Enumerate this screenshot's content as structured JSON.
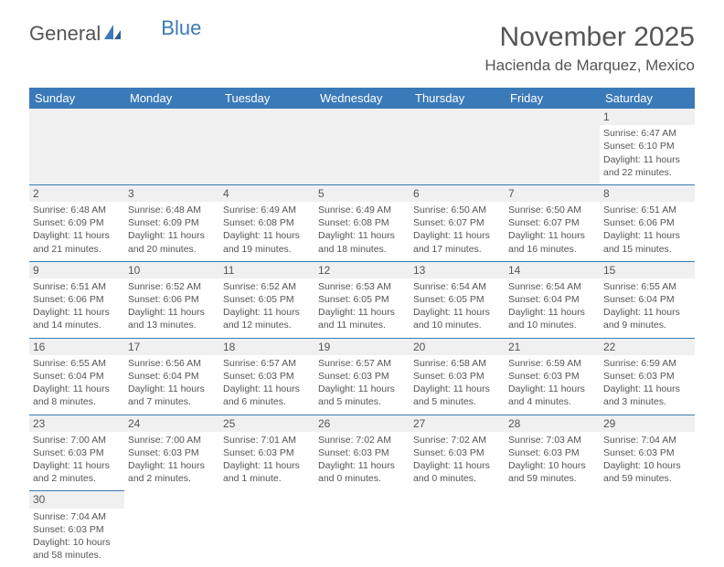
{
  "brand": {
    "name1": "General",
    "name2": "Blue"
  },
  "title": "November 2025",
  "subtitle": "Hacienda de Marquez, Mexico",
  "colors": {
    "header_bg": "#3a7ab8",
    "header_text": "#ffffff",
    "border": "#3a7ab8",
    "daynum_bg": "#f0f0f0",
    "text": "#555555"
  },
  "typography": {
    "title_fontsize": 30,
    "subtitle_fontsize": 17,
    "header_fontsize": 13,
    "cell_fontsize": 10.5
  },
  "days": [
    "Sunday",
    "Monday",
    "Tuesday",
    "Wednesday",
    "Thursday",
    "Friday",
    "Saturday"
  ],
  "weeks": [
    [
      null,
      null,
      null,
      null,
      null,
      null,
      {
        "n": "1",
        "sr": "Sunrise: 6:47 AM",
        "ss": "Sunset: 6:10 PM",
        "d1": "Daylight: 11 hours",
        "d2": "and 22 minutes."
      }
    ],
    [
      {
        "n": "2",
        "sr": "Sunrise: 6:48 AM",
        "ss": "Sunset: 6:09 PM",
        "d1": "Daylight: 11 hours",
        "d2": "and 21 minutes."
      },
      {
        "n": "3",
        "sr": "Sunrise: 6:48 AM",
        "ss": "Sunset: 6:09 PM",
        "d1": "Daylight: 11 hours",
        "d2": "and 20 minutes."
      },
      {
        "n": "4",
        "sr": "Sunrise: 6:49 AM",
        "ss": "Sunset: 6:08 PM",
        "d1": "Daylight: 11 hours",
        "d2": "and 19 minutes."
      },
      {
        "n": "5",
        "sr": "Sunrise: 6:49 AM",
        "ss": "Sunset: 6:08 PM",
        "d1": "Daylight: 11 hours",
        "d2": "and 18 minutes."
      },
      {
        "n": "6",
        "sr": "Sunrise: 6:50 AM",
        "ss": "Sunset: 6:07 PM",
        "d1": "Daylight: 11 hours",
        "d2": "and 17 minutes."
      },
      {
        "n": "7",
        "sr": "Sunrise: 6:50 AM",
        "ss": "Sunset: 6:07 PM",
        "d1": "Daylight: 11 hours",
        "d2": "and 16 minutes."
      },
      {
        "n": "8",
        "sr": "Sunrise: 6:51 AM",
        "ss": "Sunset: 6:06 PM",
        "d1": "Daylight: 11 hours",
        "d2": "and 15 minutes."
      }
    ],
    [
      {
        "n": "9",
        "sr": "Sunrise: 6:51 AM",
        "ss": "Sunset: 6:06 PM",
        "d1": "Daylight: 11 hours",
        "d2": "and 14 minutes."
      },
      {
        "n": "10",
        "sr": "Sunrise: 6:52 AM",
        "ss": "Sunset: 6:06 PM",
        "d1": "Daylight: 11 hours",
        "d2": "and 13 minutes."
      },
      {
        "n": "11",
        "sr": "Sunrise: 6:52 AM",
        "ss": "Sunset: 6:05 PM",
        "d1": "Daylight: 11 hours",
        "d2": "and 12 minutes."
      },
      {
        "n": "12",
        "sr": "Sunrise: 6:53 AM",
        "ss": "Sunset: 6:05 PM",
        "d1": "Daylight: 11 hours",
        "d2": "and 11 minutes."
      },
      {
        "n": "13",
        "sr": "Sunrise: 6:54 AM",
        "ss": "Sunset: 6:05 PM",
        "d1": "Daylight: 11 hours",
        "d2": "and 10 minutes."
      },
      {
        "n": "14",
        "sr": "Sunrise: 6:54 AM",
        "ss": "Sunset: 6:04 PM",
        "d1": "Daylight: 11 hours",
        "d2": "and 10 minutes."
      },
      {
        "n": "15",
        "sr": "Sunrise: 6:55 AM",
        "ss": "Sunset: 6:04 PM",
        "d1": "Daylight: 11 hours",
        "d2": "and 9 minutes."
      }
    ],
    [
      {
        "n": "16",
        "sr": "Sunrise: 6:55 AM",
        "ss": "Sunset: 6:04 PM",
        "d1": "Daylight: 11 hours",
        "d2": "and 8 minutes."
      },
      {
        "n": "17",
        "sr": "Sunrise: 6:56 AM",
        "ss": "Sunset: 6:04 PM",
        "d1": "Daylight: 11 hours",
        "d2": "and 7 minutes."
      },
      {
        "n": "18",
        "sr": "Sunrise: 6:57 AM",
        "ss": "Sunset: 6:03 PM",
        "d1": "Daylight: 11 hours",
        "d2": "and 6 minutes."
      },
      {
        "n": "19",
        "sr": "Sunrise: 6:57 AM",
        "ss": "Sunset: 6:03 PM",
        "d1": "Daylight: 11 hours",
        "d2": "and 5 minutes."
      },
      {
        "n": "20",
        "sr": "Sunrise: 6:58 AM",
        "ss": "Sunset: 6:03 PM",
        "d1": "Daylight: 11 hours",
        "d2": "and 5 minutes."
      },
      {
        "n": "21",
        "sr": "Sunrise: 6:59 AM",
        "ss": "Sunset: 6:03 PM",
        "d1": "Daylight: 11 hours",
        "d2": "and 4 minutes."
      },
      {
        "n": "22",
        "sr": "Sunrise: 6:59 AM",
        "ss": "Sunset: 6:03 PM",
        "d1": "Daylight: 11 hours",
        "d2": "and 3 minutes."
      }
    ],
    [
      {
        "n": "23",
        "sr": "Sunrise: 7:00 AM",
        "ss": "Sunset: 6:03 PM",
        "d1": "Daylight: 11 hours",
        "d2": "and 2 minutes."
      },
      {
        "n": "24",
        "sr": "Sunrise: 7:00 AM",
        "ss": "Sunset: 6:03 PM",
        "d1": "Daylight: 11 hours",
        "d2": "and 2 minutes."
      },
      {
        "n": "25",
        "sr": "Sunrise: 7:01 AM",
        "ss": "Sunset: 6:03 PM",
        "d1": "Daylight: 11 hours",
        "d2": "and 1 minute."
      },
      {
        "n": "26",
        "sr": "Sunrise: 7:02 AM",
        "ss": "Sunset: 6:03 PM",
        "d1": "Daylight: 11 hours",
        "d2": "and 0 minutes."
      },
      {
        "n": "27",
        "sr": "Sunrise: 7:02 AM",
        "ss": "Sunset: 6:03 PM",
        "d1": "Daylight: 11 hours",
        "d2": "and 0 minutes."
      },
      {
        "n": "28",
        "sr": "Sunrise: 7:03 AM",
        "ss": "Sunset: 6:03 PM",
        "d1": "Daylight: 10 hours",
        "d2": "and 59 minutes."
      },
      {
        "n": "29",
        "sr": "Sunrise: 7:04 AM",
        "ss": "Sunset: 6:03 PM",
        "d1": "Daylight: 10 hours",
        "d2": "and 59 minutes."
      }
    ],
    [
      {
        "n": "30",
        "sr": "Sunrise: 7:04 AM",
        "ss": "Sunset: 6:03 PM",
        "d1": "Daylight: 10 hours",
        "d2": "and 58 minutes."
      },
      null,
      null,
      null,
      null,
      null,
      null
    ]
  ]
}
